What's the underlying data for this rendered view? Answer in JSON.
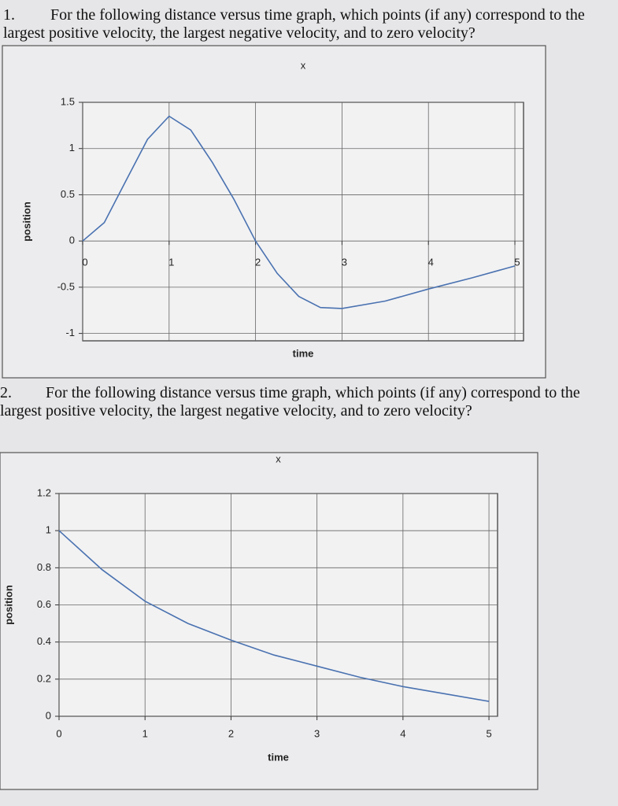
{
  "questions": [
    {
      "number": "1.",
      "text": "For the following distance versus time graph, which points (if any) correspond to the largest positive velocity, the largest negative velocity, and to zero velocity?"
    },
    {
      "number": "2.",
      "text": "For the following distance versus time graph, which points (if any) correspond to the largest positive velocity, the largest negative velocity, and to zero velocity?"
    }
  ],
  "chart_data": [
    {
      "type": "line",
      "title": "x",
      "x_label": "time",
      "y_label": "position",
      "x": [
        0,
        0.25,
        0.5,
        0.75,
        1,
        1.25,
        1.5,
        1.75,
        2,
        2.25,
        2.5,
        2.75,
        3,
        3.5,
        4,
        4.5,
        5
      ],
      "series": [
        {
          "name": "position",
          "color": "#4a72b0",
          "values": [
            0,
            0.2,
            0.65,
            1.1,
            1.35,
            1.2,
            0.85,
            0.45,
            0,
            -0.35,
            -0.6,
            -0.72,
            -0.73,
            -0.65,
            -0.52,
            -0.4,
            -0.27
          ]
        }
      ],
      "xlim": [
        0,
        5.1
      ],
      "ylim": [
        -1.08,
        1.5
      ],
      "xticks": [
        0,
        1,
        2,
        3,
        4,
        5
      ],
      "yticks": [
        -1,
        -0.5,
        0,
        0.5,
        1,
        1.5
      ],
      "grid": true
    },
    {
      "type": "line",
      "title": "x",
      "x_label": "time",
      "y_label": "position",
      "x": [
        0,
        0.5,
        1,
        1.5,
        2,
        2.5,
        3,
        3.5,
        4,
        4.5,
        5
      ],
      "series": [
        {
          "name": "position",
          "color": "#4a72b0",
          "values": [
            1,
            0.79,
            0.62,
            0.5,
            0.41,
            0.33,
            0.27,
            0.21,
            0.16,
            0.12,
            0.08
          ]
        }
      ],
      "xlim": [
        0,
        5.1
      ],
      "ylim": [
        0,
        1.2
      ],
      "xticks": [
        0,
        1,
        2,
        3,
        4,
        5
      ],
      "yticks": [
        0,
        0.2,
        0.4,
        0.6,
        0.8,
        1,
        1.2
      ],
      "grid": true
    }
  ]
}
